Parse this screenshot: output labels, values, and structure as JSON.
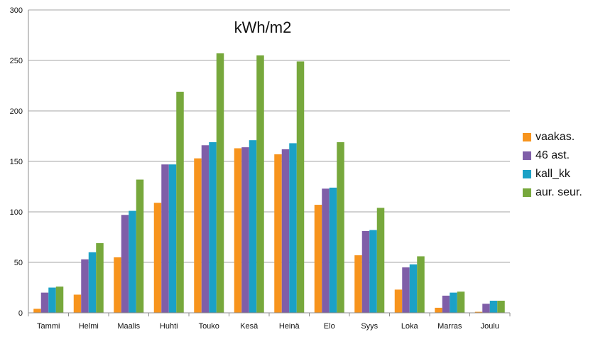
{
  "chart_data": {
    "type": "bar",
    "title": "kWh/m2",
    "xlabel": "",
    "ylabel": "",
    "ylim": [
      0,
      300
    ],
    "yticks": [
      0,
      50,
      100,
      150,
      200,
      250,
      300
    ],
    "grid": true,
    "legend_position": "right",
    "categories": [
      "Tammi",
      "Helmi",
      "Maalis",
      "Huhti",
      "Touko",
      "Kesä",
      "Heinä",
      "Elo",
      "Syys",
      "Loka",
      "Marras",
      "Joulu"
    ],
    "series": [
      {
        "name": "vaakas.",
        "color": "#f7941d",
        "values": [
          4,
          18,
          55,
          109,
          153,
          163,
          157,
          107,
          57,
          23,
          5,
          1
        ]
      },
      {
        "name": "46 ast.",
        "color": "#7f5ea8",
        "values": [
          20,
          53,
          97,
          147,
          166,
          164,
          162,
          123,
          81,
          45,
          17,
          9
        ]
      },
      {
        "name": "kall_kk",
        "color": "#1ba1c6",
        "values": [
          25,
          60,
          101,
          147,
          169,
          171,
          168,
          124,
          82,
          48,
          20,
          12
        ]
      },
      {
        "name": "aur. seur.",
        "color": "#77a83c",
        "values": [
          26,
          69,
          132,
          219,
          257,
          255,
          249,
          169,
          104,
          56,
          21,
          12
        ]
      }
    ]
  }
}
